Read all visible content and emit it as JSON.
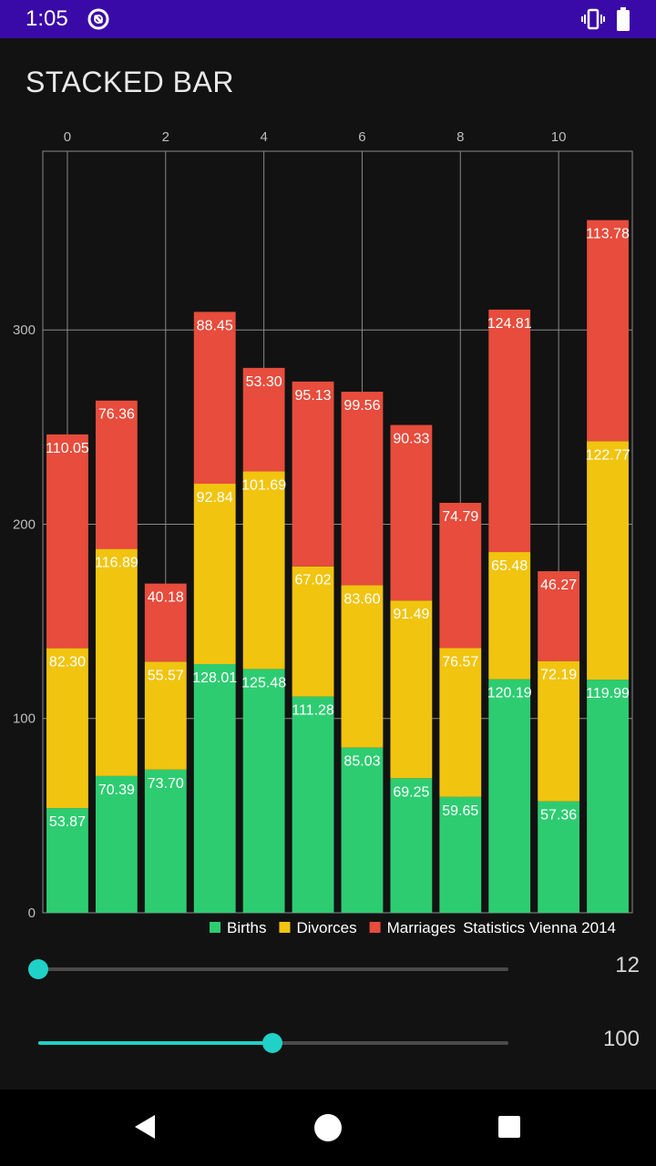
{
  "status_bar": {
    "time": "1:05",
    "icons": [
      "cast-icon",
      "vibrate-icon",
      "battery-icon"
    ]
  },
  "app_bar": {
    "title": "STACKED BAR"
  },
  "chart_data": {
    "type": "bar",
    "stacked": true,
    "x": [
      0,
      1,
      2,
      3,
      4,
      5,
      6,
      7,
      8,
      9,
      10,
      11
    ],
    "x_tick_labels": [
      "0",
      "2",
      "4",
      "6",
      "8",
      "10"
    ],
    "x_ticks": [
      0,
      2,
      4,
      6,
      8,
      10
    ],
    "y_tick_labels": [
      "0",
      "100",
      "200",
      "300"
    ],
    "y_ticks": [
      0,
      100,
      200,
      300
    ],
    "ylim": [
      0,
      392
    ],
    "grid": true,
    "legend_position": "bottom-right",
    "legend_caption": "Statistics Vienna 2014",
    "series": [
      {
        "name": "Births",
        "color": "#2ecc71",
        "values": [
          53.87,
          70.39,
          73.7,
          128.01,
          125.48,
          111.28,
          85.03,
          69.25,
          59.65,
          120.19,
          57.36,
          119.99
        ],
        "labels": [
          "53.87",
          "70.39",
          "73.70",
          "128.01",
          "125.48",
          "111.28",
          "85.03",
          "69.25",
          "59.65",
          "120.19",
          "57.36",
          "119.99"
        ]
      },
      {
        "name": "Divorces",
        "color": "#f1c40f",
        "values": [
          82.3,
          116.89,
          55.57,
          92.84,
          101.69,
          67.02,
          83.6,
          91.49,
          76.57,
          65.48,
          72.19,
          122.77
        ],
        "labels": [
          "82.30",
          "116.89",
          "55.57",
          "92.84",
          "101.69",
          "67.02",
          "83.60",
          "91.49",
          "76.57",
          "65.48",
          "72.19",
          "122.77"
        ]
      },
      {
        "name": "Marriages",
        "color": "#e74c3c",
        "values": [
          110.05,
          76.36,
          40.18,
          88.45,
          53.3,
          95.13,
          99.56,
          90.33,
          74.79,
          124.81,
          46.27,
          113.78
        ],
        "labels": [
          "110.05",
          "76.36",
          "40.18",
          "88.45",
          "53.30",
          "95.13",
          "99.56",
          "90.33",
          "74.79",
          "124.81",
          "46.27",
          "113.78"
        ]
      }
    ]
  },
  "sliders": [
    {
      "value_text": "12",
      "fraction": 0.0
    },
    {
      "value_text": "100",
      "fraction": 0.5
    }
  ],
  "colors": {
    "accent": "#1fd1c6",
    "status_bar": "#3a0aa8",
    "background": "#121212"
  }
}
